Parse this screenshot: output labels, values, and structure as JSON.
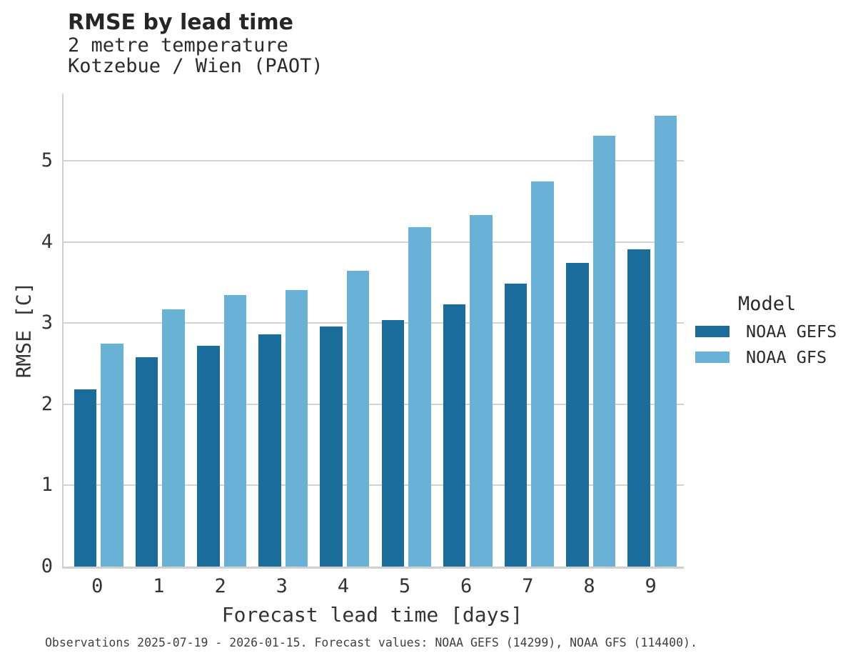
{
  "title": "RMSE by lead time",
  "subtitle_line1": "2 metre temperature",
  "subtitle_line2": "Kotzebue / Wien (PAOT)",
  "footer": "Observations 2025-07-19 - 2026-01-15. Forecast values: NOAA GEFS (14299), NOAA GFS (114400).",
  "colors": {
    "noaa_gefs": "#1a6d9b",
    "noaa_gfs": "#6ab1d8",
    "gridline": "#d3d3d3",
    "axis_line": "#d0d0d0",
    "title_text": "#262626",
    "body_text": "#333333",
    "footer_text": "#3f3f3f"
  },
  "legend": {
    "title": "Model",
    "entries": [
      {
        "label": "NOAA GEFS",
        "color": "#1a6d9b"
      },
      {
        "label": "NOAA GFS",
        "color": "#6ab1d8"
      }
    ]
  },
  "chart_data": {
    "type": "bar",
    "title": "RMSE by lead time",
    "subtitle": [
      "2 metre temperature",
      "Kotzebue / Wien (PAOT)"
    ],
    "xlabel": "Forecast lead time [days]",
    "ylabel": "RMSE [C]",
    "categories": [
      "0",
      "1",
      "2",
      "3",
      "4",
      "5",
      "6",
      "7",
      "8",
      "9"
    ],
    "series": [
      {
        "name": "NOAA GEFS",
        "color": "#1a6d9b",
        "values": [
          2.18,
          2.58,
          2.72,
          2.86,
          2.96,
          3.04,
          3.23,
          3.49,
          3.74,
          3.91
        ]
      },
      {
        "name": "NOAA GFS",
        "color": "#6ab1d8",
        "values": [
          2.75,
          3.17,
          3.35,
          3.41,
          3.65,
          4.18,
          4.33,
          4.75,
          5.31,
          5.56
        ]
      }
    ],
    "ylim": [
      0,
      5.83
    ],
    "yticks": [
      0,
      1,
      2,
      3,
      4,
      5
    ],
    "grid": "horizontal",
    "legend_position": "right",
    "caption": "Observations 2025-07-19 - 2026-01-15. Forecast values: NOAA GEFS (14299), NOAA GFS (114400)."
  }
}
